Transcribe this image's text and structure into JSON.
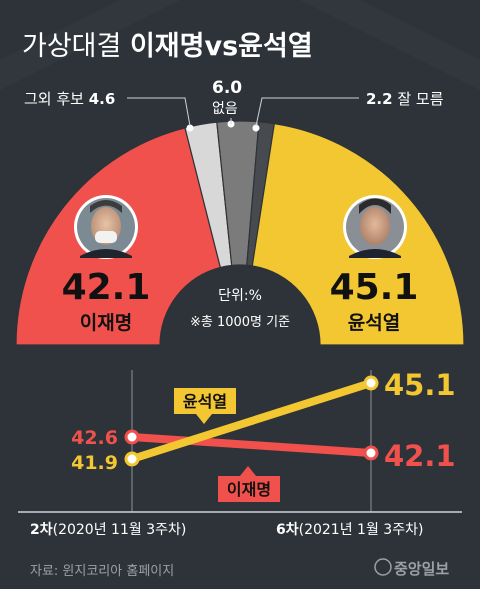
{
  "title": {
    "prefix": "가상대결",
    "emphasis": "이재명vs윤석열"
  },
  "labels": {
    "others_name": "그외 후보",
    "others_value": "4.6",
    "none_value": "6.0",
    "none_name": "없음",
    "dunno_value": "2.2",
    "dunno_name": "잘 모름",
    "unit": "단위:%",
    "sample": "※총 1000명 기준"
  },
  "colors": {
    "background": "#2e3339",
    "lee": "#f0514c",
    "yoon": "#f3c731",
    "others": "#d8d8d8",
    "none": "#7b7b7b",
    "dunno": "#474a4e"
  },
  "chart_data": [
    {
      "type": "pie",
      "subtype": "half-donut",
      "unit": "%",
      "slices": [
        {
          "label": "이재명",
          "value": 42.1,
          "color": "#f0514c"
        },
        {
          "label": "그외 후보",
          "value": 4.6,
          "color": "#d8d8d8"
        },
        {
          "label": "없음",
          "value": 6.0,
          "color": "#7b7b7b"
        },
        {
          "label": "잘 모름",
          "value": 2.2,
          "color": "#474a4e"
        },
        {
          "label": "윤석열",
          "value": 45.1,
          "color": "#f3c731"
        }
      ]
    },
    {
      "type": "line",
      "categories": [
        "2차(2020년 11월 3주차)",
        "6차(2021년 1월 3주차)"
      ],
      "x_ticks": [
        {
          "bold": "2차",
          "rest": "(2020년 11월 3주차)"
        },
        {
          "bold": "6차",
          "rest": "(2021년 1월 3주차)"
        }
      ],
      "series": [
        {
          "name": "윤석열",
          "values": [
            41.9,
            45.1
          ],
          "color": "#f3c731"
        },
        {
          "name": "이재명",
          "values": [
            42.6,
            42.1
          ],
          "color": "#f0514c"
        }
      ]
    }
  ],
  "footer": {
    "source": "자료: 윈지코리아 홈페이지",
    "brand": "중앙일보"
  }
}
